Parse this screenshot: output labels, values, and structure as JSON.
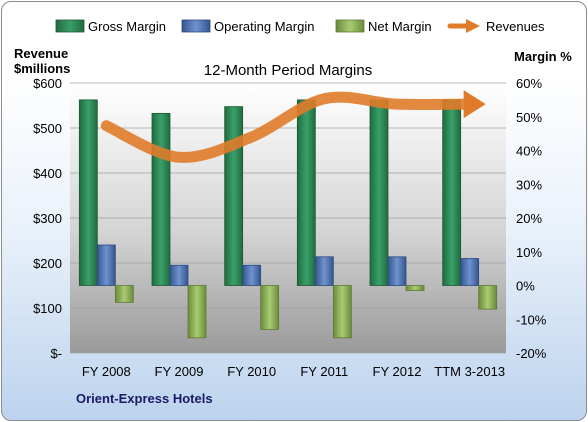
{
  "chart_data": {
    "type": "bar",
    "title": "12-Month Period Margins",
    "categories": [
      "FY 2008",
      "FY 2009",
      "FY 2010",
      "FY 2011",
      "FY 2012",
      "TTM 3-2013"
    ],
    "series": [
      {
        "name": "Gross Margin",
        "axis": "right",
        "kind": "bar",
        "values": [
          55,
          51,
          53,
          55,
          55,
          55
        ],
        "color": "#2e8b57"
      },
      {
        "name": "Operating Margin",
        "axis": "right",
        "kind": "bar",
        "values": [
          12,
          6,
          6,
          8.5,
          8.5,
          8
        ],
        "color": "#4f74b5"
      },
      {
        "name": "Net Margin",
        "axis": "right",
        "kind": "bar",
        "values": [
          -5,
          -15.5,
          -13,
          -15.5,
          -1.5,
          -7
        ],
        "color": "#8fb35a"
      },
      {
        "name": "Revenues",
        "axis": "left",
        "kind": "line",
        "values": [
          505,
          435,
          480,
          565,
          553,
          553
        ],
        "color": "#e07b2a"
      }
    ],
    "ylabel_left": "Revenue $millions",
    "ylabel_right": "Margin %",
    "ylim_left": [
      0,
      600
    ],
    "ylim_right": [
      -20,
      60
    ],
    "yticks_left": [
      "$-",
      "$100",
      "$200",
      "$300",
      "$400",
      "$500",
      "$600"
    ],
    "yticks_right": [
      "-20%",
      "-10%",
      "0%",
      "10%",
      "20%",
      "30%",
      "40%",
      "50%",
      "60%"
    ],
    "legend_position": "top",
    "grid": true
  },
  "annotation": "Orient-Express Hotels"
}
